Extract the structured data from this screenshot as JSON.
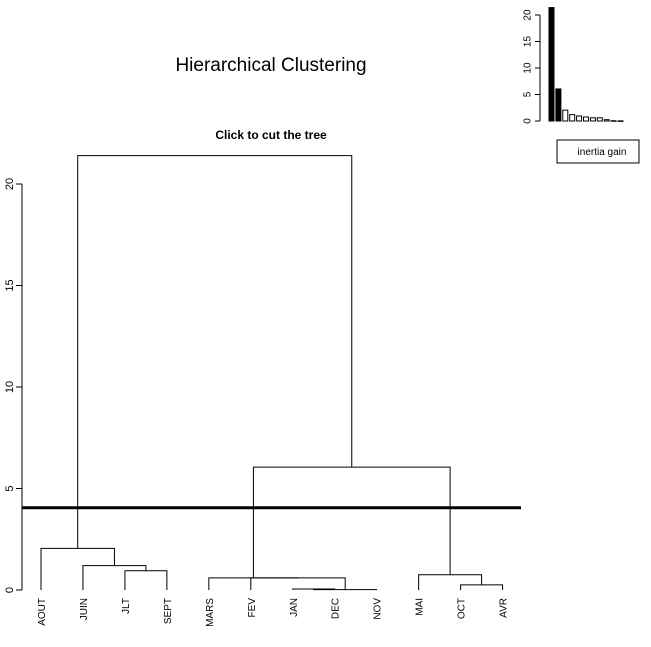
{
  "title": "Hierarchical Clustering",
  "subtitle": "Click to cut the tree",
  "legend_label": "inertia gain",
  "chart_data": [
    {
      "type": "dendrogram",
      "title": "Hierarchical Clustering",
      "subtitle": "Click to cut the tree",
      "leaves": [
        "AOUT",
        "JUIN",
        "JLT",
        "SEPT",
        "MARS",
        "FEV",
        "JAN",
        "DEC",
        "NOV",
        "MAI",
        "OCT",
        "AVR"
      ],
      "y_ticks": [
        0,
        5,
        10,
        15,
        20
      ],
      "ylim": [
        0,
        22.2
      ],
      "cut_height": 4.05,
      "merges": [
        {
          "left": "JAN",
          "right": "DEC",
          "height": 0.05
        },
        {
          "left": "JAN+DEC",
          "right": "NOV",
          "height": 0.02
        },
        {
          "left": "OCT",
          "right": "AVR",
          "height": 0.25
        },
        {
          "left": "FEV",
          "right": "JAN+DEC+NOV",
          "height": 0.6
        },
        {
          "left": "MAI",
          "right": "OCT+AVR",
          "height": 0.75
        },
        {
          "left": "JLT",
          "right": "SEPT",
          "height": 0.95
        },
        {
          "left": "JUIN",
          "right": "JLT+SEPT",
          "height": 1.2
        },
        {
          "left": "MARS",
          "right": "FEV+JAN+DEC+NOV",
          "height": 0.6
        },
        {
          "left": "AOUT",
          "right": "JUIN+JLT+SEPT",
          "height": 2.05
        },
        {
          "left": "MARS+FEV+JAN+DEC+NOV",
          "right": "MAI+OCT+AVR",
          "height": 6.05
        },
        {
          "left": "AOUT+JUIN+JLT+SEPT",
          "right": "MARS+FEV+JAN+DEC+NOV+MAI+OCT+AVR",
          "height": 21.4
        }
      ]
    },
    {
      "type": "bar",
      "legend": "inertia gain",
      "values": [
        21.4,
        6.05,
        2.05,
        1.2,
        0.95,
        0.75,
        0.6,
        0.6,
        0.25,
        0.05,
        0.02
      ],
      "highlighted": [
        true,
        true,
        false,
        false,
        false,
        false,
        false,
        false,
        false,
        false,
        false
      ],
      "y_ticks": [
        0,
        5,
        10,
        15,
        20
      ],
      "ylim": [
        0,
        22.5
      ]
    }
  ]
}
